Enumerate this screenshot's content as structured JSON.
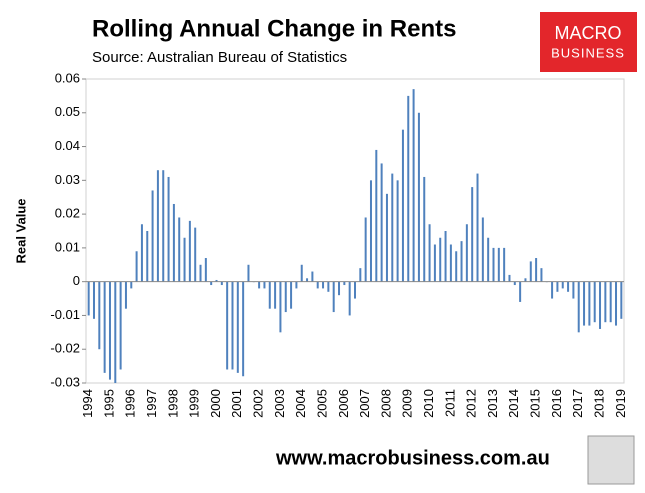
{
  "chart_data": {
    "type": "bar",
    "title": "Rolling Annual Change in Rents",
    "subtitle": "Source: Australian Bureau of Statistics",
    "y_label": "Real Value",
    "footer": "www.macrobusiness.com.au",
    "logo": [
      "MACRO",
      "BUSINESS"
    ],
    "color": "#4f81bd",
    "ylim": [
      -0.03,
      0.06
    ],
    "yticks": [
      -0.03,
      -0.02,
      -0.01,
      0,
      0.01,
      0.02,
      0.03,
      0.04,
      0.05,
      0.06
    ],
    "categories": [
      "1994",
      null,
      null,
      null,
      "1995",
      null,
      null,
      null,
      "1996",
      null,
      null,
      null,
      "1997",
      null,
      null,
      null,
      "1998",
      null,
      null,
      null,
      "1999",
      null,
      null,
      null,
      "2000",
      null,
      null,
      null,
      "2001",
      null,
      null,
      null,
      "2002",
      null,
      null,
      null,
      "2003",
      null,
      null,
      null,
      "2004",
      null,
      null,
      null,
      "2005",
      null,
      null,
      null,
      "2006",
      null,
      null,
      null,
      "2007",
      null,
      null,
      null,
      "2008",
      null,
      null,
      null,
      "2009",
      null,
      null,
      null,
      "2010",
      null,
      null,
      null,
      "2011",
      null,
      null,
      null,
      "2012",
      null,
      null,
      null,
      "2013",
      null,
      null,
      null,
      "2014",
      null,
      null,
      null,
      "2015",
      null,
      null,
      null,
      "2016",
      null,
      null,
      null,
      "2017",
      null,
      null,
      null,
      "2018",
      null,
      null,
      null,
      "2019"
    ],
    "values": [
      -0.01,
      -0.011,
      -0.02,
      -0.027,
      -0.029,
      -0.03,
      -0.026,
      -0.008,
      -0.002,
      0.009,
      0.017,
      0.015,
      0.027,
      0.033,
      0.033,
      0.031,
      0.023,
      0.019,
      0.013,
      0.018,
      0.016,
      0.005,
      0.007,
      -0.001,
      0.0005,
      -0.001,
      -0.026,
      -0.026,
      -0.027,
      -0.028,
      0.005,
      0.0,
      -0.002,
      -0.002,
      -0.008,
      -0.008,
      -0.015,
      -0.009,
      -0.008,
      -0.002,
      0.005,
      0.001,
      0.003,
      -0.002,
      -0.002,
      -0.003,
      -0.009,
      -0.004,
      -0.001,
      -0.01,
      -0.005,
      0.004,
      0.019,
      0.03,
      0.039,
      0.035,
      0.026,
      0.032,
      0.03,
      0.045,
      0.055,
      0.057,
      0.05,
      0.031,
      0.017,
      0.011,
      0.013,
      0.015,
      0.011,
      0.009,
      0.012,
      0.017,
      0.028,
      0.032,
      0.019,
      0.013,
      0.01,
      0.01,
      0.01,
      0.002,
      -0.001,
      -0.006,
      0.001,
      0.006,
      0.007,
      0.004,
      0.0,
      -0.005,
      -0.003,
      -0.002,
      -0.003,
      -0.005,
      -0.015,
      -0.013,
      -0.013,
      -0.012,
      -0.014,
      -0.012,
      -0.012,
      -0.013,
      -0.011
    ]
  }
}
